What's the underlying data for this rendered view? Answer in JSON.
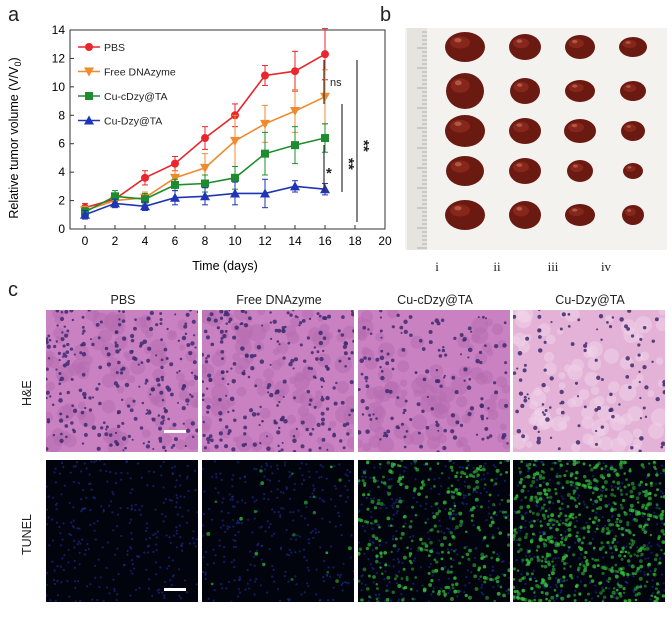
{
  "panels": {
    "a": "a",
    "b": "b",
    "c": "c"
  },
  "chart_data": {
    "type": "line",
    "title": "",
    "xlabel": "Time (days)",
    "ylabel": "Relative tumor volume (V/V",
    "ylabel_sub": "0",
    "ylabel_tail": ")",
    "x": [
      0,
      2,
      4,
      6,
      8,
      10,
      12,
      14,
      16
    ],
    "xlim": [
      -1,
      20
    ],
    "ylim": [
      0,
      14
    ],
    "xticks": [
      0,
      2,
      4,
      6,
      8,
      10,
      12,
      14,
      16,
      18,
      20
    ],
    "yticks": [
      0,
      2,
      4,
      6,
      8,
      10,
      12,
      14
    ],
    "legend_position": "top-left",
    "series": [
      {
        "name": "PBS",
        "color": "#e8262b",
        "marker": "circle",
        "values": [
          1.5,
          2.1,
          3.6,
          4.6,
          6.4,
          8.0,
          10.8,
          11.1,
          12.3
        ],
        "errors": [
          0.3,
          0.3,
          0.5,
          0.5,
          0.8,
          0.8,
          0.7,
          1.4,
          1.8
        ]
      },
      {
        "name": "Free DNAzyme",
        "color": "#f08a2e",
        "marker": "triangle-down",
        "values": [
          1.3,
          2.0,
          2.2,
          3.6,
          4.3,
          6.2,
          7.4,
          8.3,
          9.3
        ],
        "errors": [
          0.3,
          0.4,
          0.4,
          0.5,
          1.0,
          1.8,
          1.3,
          1.5,
          1.9
        ]
      },
      {
        "name": "Cu-cDzy@TA",
        "color": "#1e8c2e",
        "marker": "square",
        "values": [
          1.2,
          2.3,
          2.1,
          3.1,
          3.2,
          3.6,
          5.3,
          5.9,
          6.4
        ],
        "errors": [
          0.3,
          0.4,
          0.4,
          0.4,
          0.6,
          0.8,
          1.5,
          1.3,
          1.0
        ]
      },
      {
        "name": "Cu-Dzy@TA",
        "color": "#1f35b5",
        "marker": "triangle-up",
        "values": [
          1.0,
          1.8,
          1.6,
          2.2,
          2.3,
          2.5,
          2.5,
          3.0,
          2.8
        ],
        "errors": [
          0.3,
          0.3,
          0.3,
          0.5,
          0.6,
          0.8,
          1.0,
          0.4,
          0.4
        ]
      }
    ],
    "annotations": [
      {
        "text": "ns",
        "between": [
          "PBS",
          "Free DNAzyme"
        ]
      },
      {
        "text": "*",
        "between": [
          "Cu-cDzy@TA",
          "Cu-Dzy@TA"
        ]
      },
      {
        "text": "**",
        "between": [
          "PBS",
          "Cu-cDzy@TA"
        ]
      },
      {
        "text": "**",
        "between": [
          "PBS",
          "Cu-Dzy@TA"
        ]
      }
    ]
  },
  "groups": [
    "i",
    "ii",
    "iii",
    "iv"
  ],
  "micro": {
    "columns": [
      "PBS",
      "Free DNAzyme",
      "Cu-cDzy@TA",
      "Cu-Dzy@TA"
    ],
    "rows": [
      "H&E",
      "TUNEL"
    ]
  }
}
